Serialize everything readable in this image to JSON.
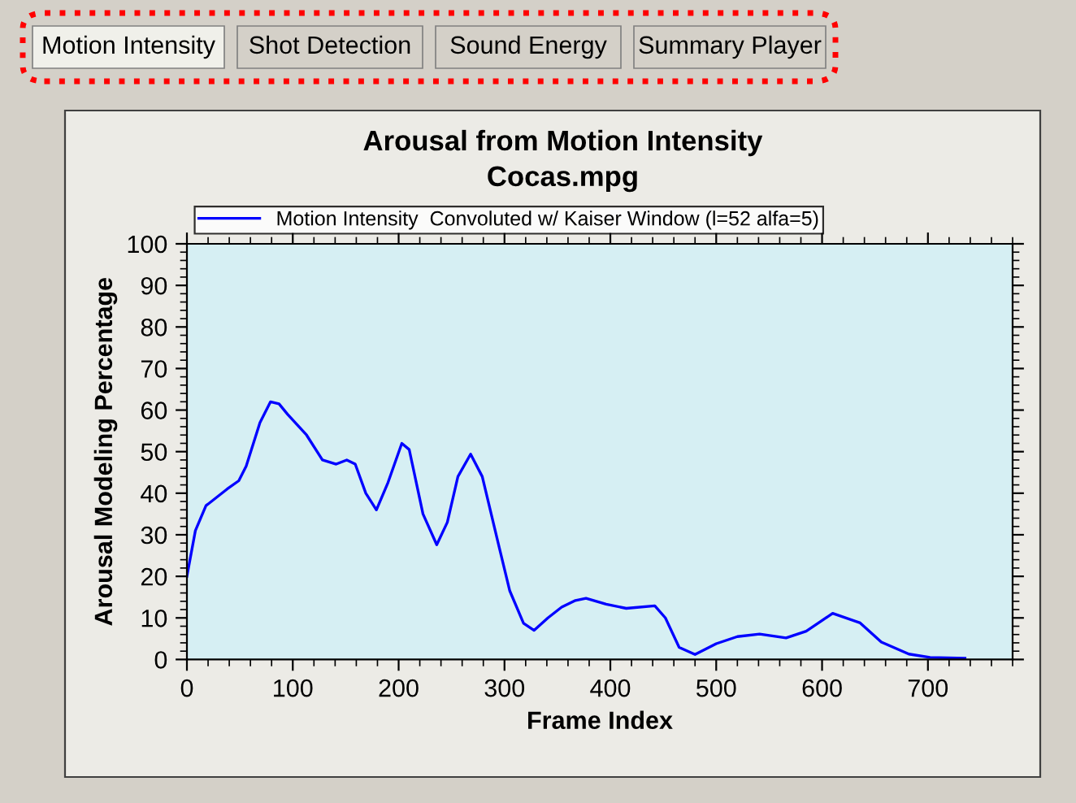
{
  "chart_data": {
    "type": "line",
    "title": "Arousal from Motion Intensity",
    "subtitle": "Cocas.mpg",
    "xlabel": "Frame Index",
    "ylabel": "Arousal Modeling Percentage",
    "annotations": [
      "Motion Intensity",
      "Shot Detection",
      "Sound Energy",
      "Summary Player"
    ],
    "x": [
      0,
      8,
      18,
      38,
      49,
      56,
      69,
      79,
      87,
      95,
      113,
      128,
      141,
      151,
      159,
      169,
      179,
      190,
      203,
      210,
      223,
      236,
      246,
      256,
      268,
      279,
      295,
      305,
      318,
      328,
      341,
      354,
      367,
      377,
      396,
      415,
      442,
      452,
      465,
      480,
      500,
      520,
      541,
      566,
      585,
      610,
      636,
      656,
      682,
      702,
      735
    ],
    "series": [
      {
        "name": "Motion Intensity  Convoluted w/ Kaiser Window (l=52 alfa=5)",
        "color": "#0000ff",
        "values": [
          20,
          31,
          37,
          41,
          43,
          46.5,
          57,
          62,
          61.5,
          59,
          54,
          48,
          47,
          48,
          47,
          40,
          36,
          42.6,
          52,
          50.5,
          35,
          27.6,
          33,
          44,
          49.4,
          44,
          27,
          16.5,
          8.7,
          7,
          10,
          12.6,
          14.2,
          14.7,
          13.3,
          12.3,
          12.9,
          10,
          2.9,
          1.2,
          3.8,
          5.5,
          6.1,
          5.2,
          6.8,
          11.1,
          8.8,
          4.2,
          1.3,
          0.5,
          0.3
        ]
      }
    ],
    "xlim": [
      0,
      780
    ],
    "xticks": [
      0,
      100,
      200,
      300,
      400,
      500,
      600,
      700
    ],
    "ylim": [
      0,
      100
    ],
    "yticks": [
      0,
      10,
      20,
      30,
      40,
      50,
      60,
      70,
      80,
      90,
      100
    ],
    "grid": false,
    "legend": "top",
    "marker": "none",
    "line_style": "solid"
  }
}
